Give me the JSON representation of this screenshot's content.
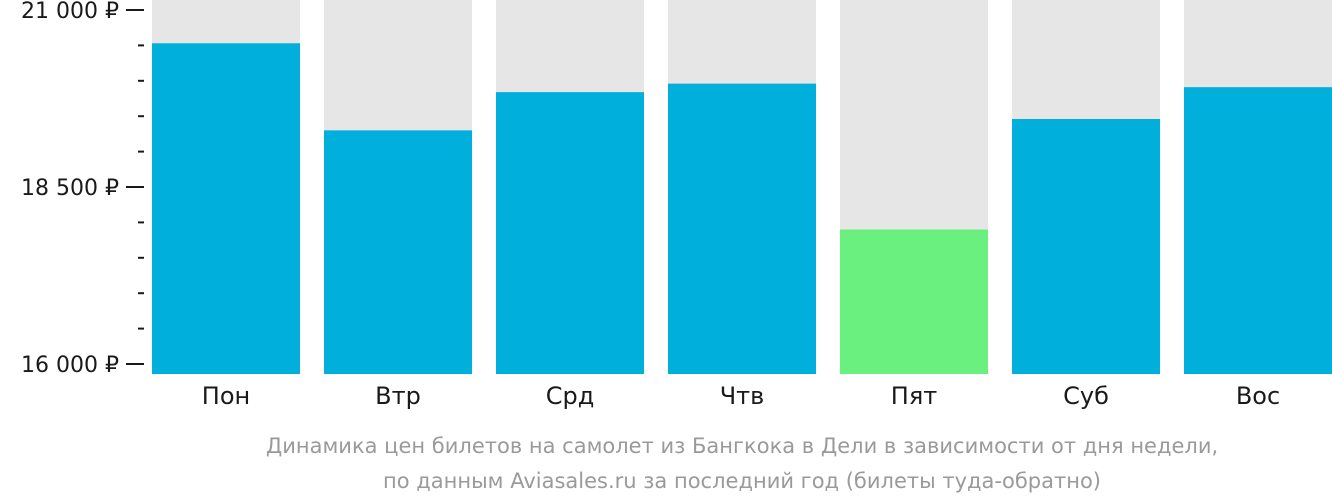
{
  "chart_data": {
    "type": "bar",
    "categories": [
      "Пон",
      "Втр",
      "Срд",
      "Чтв",
      "Пят",
      "Суб",
      "Вос"
    ],
    "values": [
      20530,
      19300,
      19840,
      19960,
      17900,
      19460,
      19910
    ],
    "highlight_index": 4,
    "ylim": [
      16000,
      21000
    ],
    "ytick_labels": [
      {
        "value": 21000,
        "label": "21 000 ₽"
      },
      {
        "value": 18500,
        "label": "18 500 ₽"
      },
      {
        "value": 16000,
        "label": "16 000 ₽"
      }
    ],
    "minor_tick_step": 500,
    "caption": [
      "Динамика цен билетов на самолет из Бангкока в Дели в зависимости от дня недели,",
      "по данным Aviasales.ru за последний год (билеты туда-обратно)"
    ],
    "colors": {
      "bar": "#00afdb",
      "highlight": "#6af07f",
      "background_bar": "#e6e6e6",
      "axis": "#1a1a1a",
      "caption": "#9a9a9a"
    }
  }
}
